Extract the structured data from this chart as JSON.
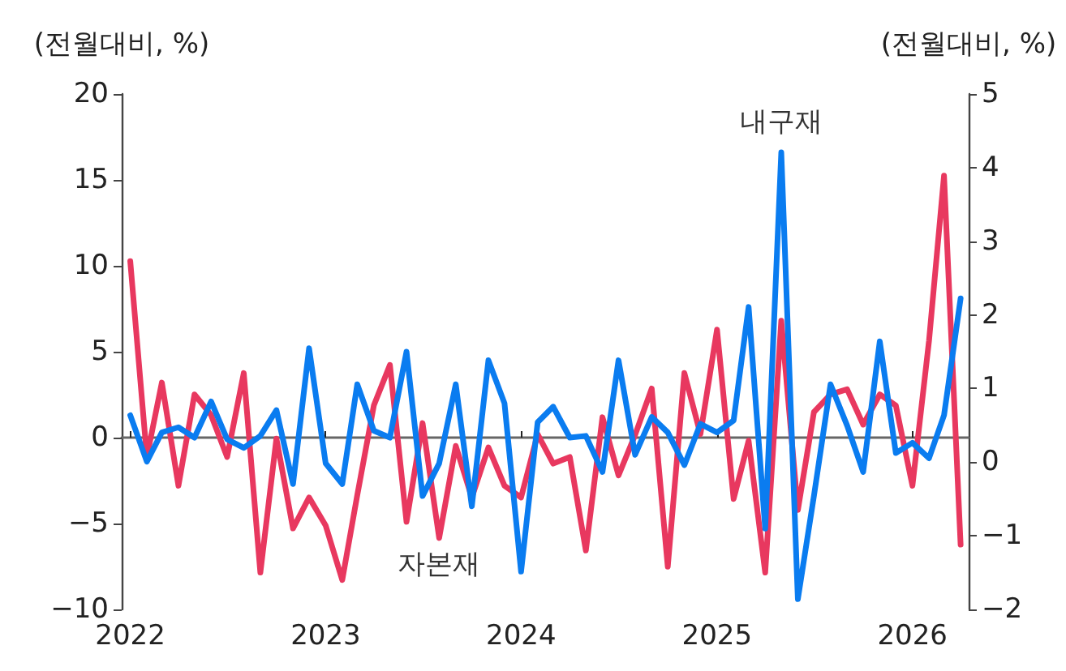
{
  "chart_data": {
    "type": "line",
    "ylabel": "(전월대비, %)",
    "y2label": "(전월대비, %)",
    "x": [
      "2022-01",
      "2022-02",
      "2022-03",
      "2022-04",
      "2022-05",
      "2022-06",
      "2022-07",
      "2022-08",
      "2022-09",
      "2022-10",
      "2022-11",
      "2022-12",
      "2023-01",
      "2023-02",
      "2023-03",
      "2023-04",
      "2023-05",
      "2023-06",
      "2023-07",
      "2023-08",
      "2023-09",
      "2023-10",
      "2023-11",
      "2023-12",
      "2024-01",
      "2024-02",
      "2024-03",
      "2024-04",
      "2024-05",
      "2024-06",
      "2024-07",
      "2024-08",
      "2024-09",
      "2024-10",
      "2024-11",
      "2024-12",
      "2025-01",
      "2025-02",
      "2025-03",
      "2025-04",
      "2025-05",
      "2025-06",
      "2025-07",
      "2025-08",
      "2025-09",
      "2025-10",
      "2025-11",
      "2025-12",
      "2026-01",
      "2026-02",
      "2026-03",
      "2026-04"
    ],
    "series": [
      {
        "name": "내구재",
        "color": "#0a7cf0",
        "values": [
          1.3,
          -1.4,
          0.3,
          0.6,
          0,
          2.1,
          -0.1,
          -0.6,
          0.1,
          1.6,
          -2.7,
          5.2,
          -1.5,
          -2.7,
          3.1,
          0.4,
          0,
          5.0,
          -3.4,
          -1.5,
          3.1,
          -4.0,
          4.5,
          2.0,
          -7.8,
          0.9,
          1.8,
          0,
          0.1,
          -2.0,
          4.5,
          -1.0,
          1.2,
          0.3,
          -1.6,
          0.8,
          0.3,
          1.0,
          7.6,
          -5.3,
          16.6,
          -9.4,
          -3.4,
          3.1,
          0.7,
          -2.0,
          5.6,
          -0.9,
          -0.3,
          -1.2,
          1.3,
          8.1
        ]
      },
      {
        "name": "자본재",
        "color": "#e8385f",
        "axis": "y2",
        "values": [
          2.73,
          0.07,
          1.08,
          -0.32,
          0.92,
          0.64,
          0.07,
          1.21,
          -1.5,
          0.32,
          -0.9,
          -0.48,
          -0.86,
          -1.6,
          -0.45,
          0.77,
          1.32,
          -0.81,
          0.53,
          -1.03,
          0.22,
          -0.48,
          0.2,
          -0.32,
          -0.48,
          0.38,
          -0.02,
          0.07,
          -1.2,
          0.61,
          -0.18,
          0.37,
          1.0,
          -1.42,
          1.21,
          0.38,
          1.8,
          -0.5,
          0.29,
          -1.5,
          1.92,
          -0.65,
          0.68,
          0.92,
          0.99,
          0.51,
          0.92,
          0.77,
          -0.32,
          1.65,
          3.89,
          -1.12
        ]
      }
    ],
    "xlim": [
      "2021-12-16",
      "2026-04-16"
    ],
    "xticks": [
      {
        "value": "2022-01",
        "label": "2022"
      },
      {
        "value": "2023-01",
        "label": "2023"
      },
      {
        "value": "2024-01",
        "label": "2024"
      },
      {
        "value": "2025-01",
        "label": "2025"
      },
      {
        "value": "2026-01",
        "label": "2026"
      }
    ],
    "ylim": [
      -10,
      20
    ],
    "yticks": [
      {
        "value": -10,
        "label": "−10"
      },
      {
        "value": -5,
        "label": "−5"
      },
      {
        "value": 0,
        "label": "0"
      },
      {
        "value": 5,
        "label": "5"
      },
      {
        "value": 10,
        "label": "10"
      },
      {
        "value": 15,
        "label": "15"
      },
      {
        "value": 20,
        "label": "20"
      }
    ],
    "y2lim": [
      -2,
      5
    ],
    "y2ticks": [
      {
        "value": -2,
        "label": "−2"
      },
      {
        "value": -1,
        "label": "−1"
      },
      {
        "value": 0,
        "label": "0"
      },
      {
        "value": 1,
        "label": "1"
      },
      {
        "value": 2,
        "label": "2"
      },
      {
        "value": 3,
        "label": "3"
      },
      {
        "value": 4,
        "label": "4"
      },
      {
        "value": 5,
        "label": "5"
      }
    ],
    "legend": false,
    "marker": "none",
    "line_style": "solid"
  }
}
